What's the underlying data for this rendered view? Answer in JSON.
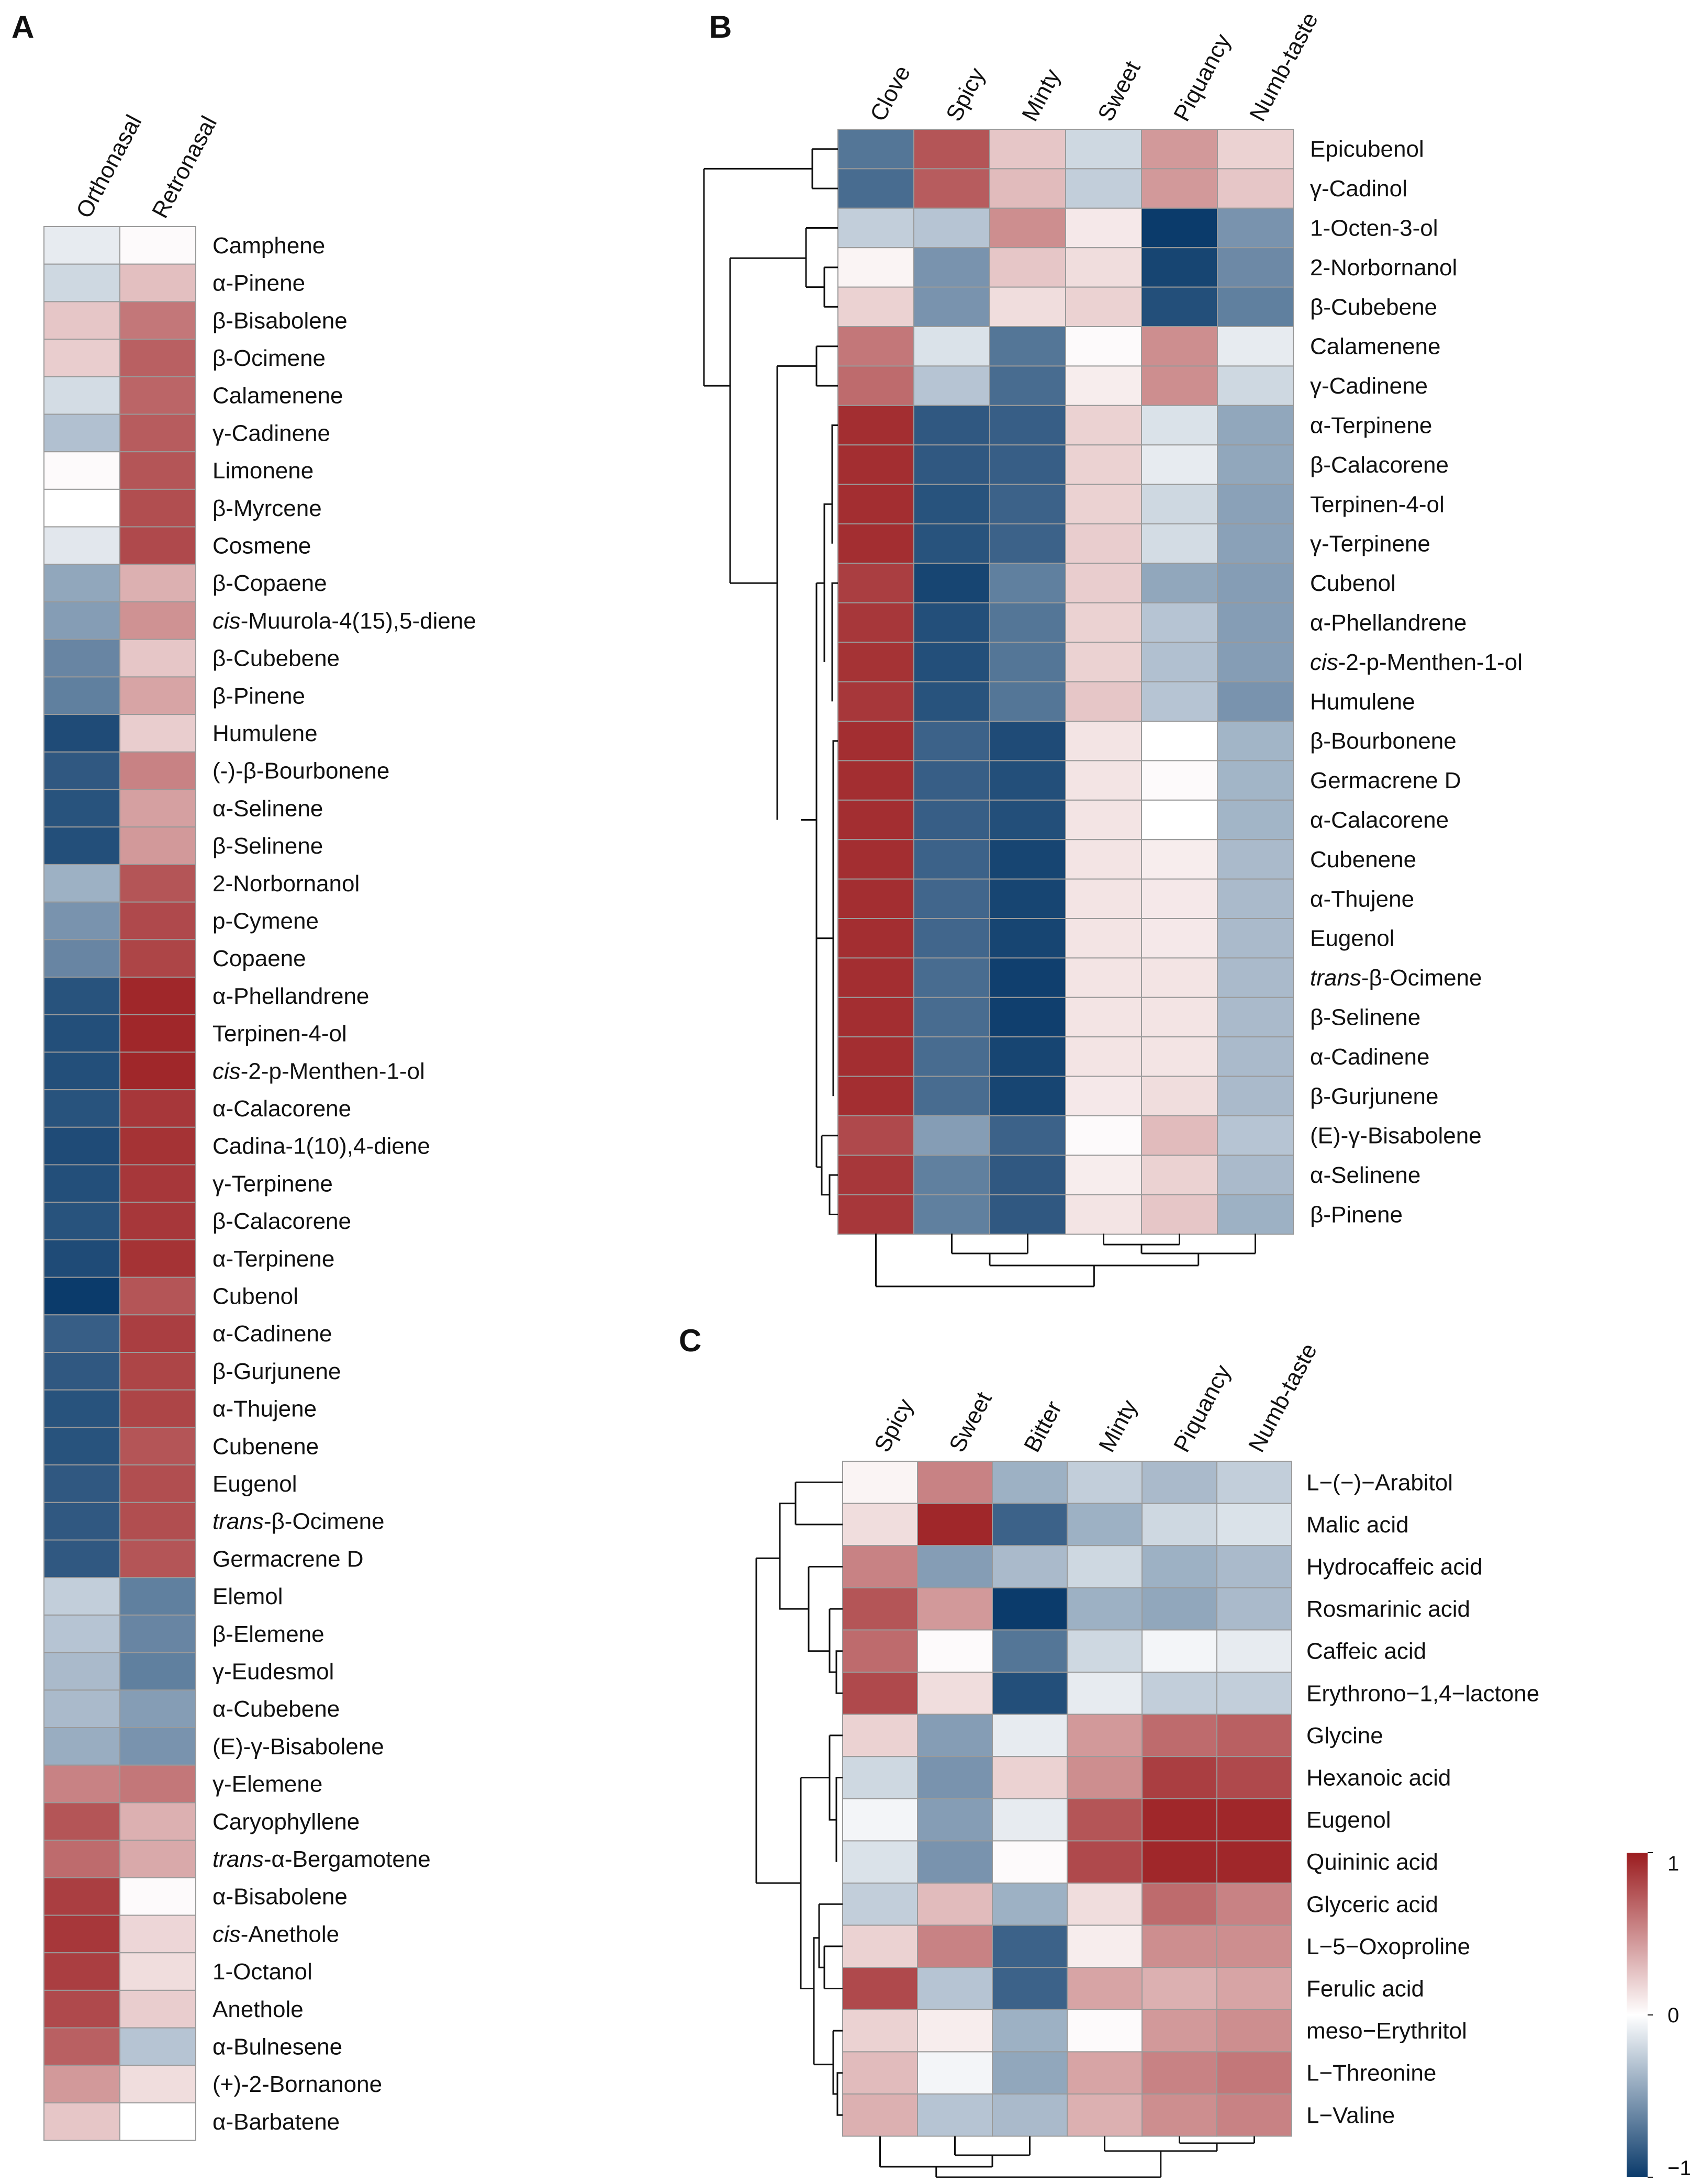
{
  "chart_data": [
    {
      "panel": "A",
      "type": "heatmap",
      "columns": [
        "Orthonasal",
        "Retronasal"
      ],
      "rows": [
        {
          "label": "Camphene",
          "values": [
            -0.1,
            0.02
          ]
        },
        {
          "label": "α-Pinene",
          "values": [
            -0.2,
            0.28
          ]
        },
        {
          "label": "β-Bisabolene",
          "values": [
            0.25,
            0.6
          ]
        },
        {
          "label": "β-Ocimene",
          "values": [
            0.22,
            0.7
          ]
        },
        {
          "label": "Calamenene",
          "values": [
            -0.18,
            0.68
          ]
        },
        {
          "label": "γ-Cadinene",
          "values": [
            -0.32,
            0.72
          ]
        },
        {
          "label": "Limonene",
          "values": [
            0.02,
            0.75
          ]
        },
        {
          "label": "β-Myrcene",
          "values": [
            0.0,
            0.78
          ]
        },
        {
          "label": "Cosmene",
          "values": [
            -0.12,
            0.8
          ]
        },
        {
          "label": "β-Copaene",
          "values": [
            -0.45,
            0.35
          ]
        },
        {
          "label": "cis-Muurola-4(15),5-diene",
          "values": [
            -0.5,
            0.48
          ]
        },
        {
          "label": "β-Cubebene",
          "values": [
            -0.62,
            0.25
          ]
        },
        {
          "label": "β-Pinene",
          "values": [
            -0.65,
            0.4
          ]
        },
        {
          "label": "Humulene",
          "values": [
            -0.92,
            0.22
          ]
        },
        {
          "label": "(-)-β-Bourbonene",
          "values": [
            -0.85,
            0.55
          ]
        },
        {
          "label": "α-Selinene",
          "values": [
            -0.88,
            0.42
          ]
        },
        {
          "label": "β-Selinene",
          "values": [
            -0.9,
            0.45
          ]
        },
        {
          "label": "2-Norbornanol",
          "values": [
            -0.4,
            0.75
          ]
        },
        {
          "label": "p-Cymene",
          "values": [
            -0.55,
            0.8
          ]
        },
        {
          "label": "Copaene",
          "values": [
            -0.62,
            0.82
          ]
        },
        {
          "label": "α-Phellandrene",
          "values": [
            -0.88,
            0.95
          ]
        },
        {
          "label": "Terpinen-4-ol",
          "values": [
            -0.9,
            0.95
          ]
        },
        {
          "label": "cis-2-p-Menthen-1-ol",
          "values": [
            -0.9,
            0.95
          ]
        },
        {
          "label": "α-Calacorene",
          "values": [
            -0.88,
            0.88
          ]
        },
        {
          "label": "Cadina-1(10),4-diene",
          "values": [
            -0.92,
            0.9
          ]
        },
        {
          "label": "γ-Terpinene",
          "values": [
            -0.9,
            0.88
          ]
        },
        {
          "label": "β-Calacorene",
          "values": [
            -0.88,
            0.88
          ]
        },
        {
          "label": "α-Terpinene",
          "values": [
            -0.92,
            0.9
          ]
        },
        {
          "label": "Cubenol",
          "values": [
            -1.0,
            0.75
          ]
        },
        {
          "label": "α-Cadinene",
          "values": [
            -0.82,
            0.85
          ]
        },
        {
          "label": "β-Gurjunene",
          "values": [
            -0.85,
            0.82
          ]
        },
        {
          "label": "α-Thujene",
          "values": [
            -0.88,
            0.82
          ]
        },
        {
          "label": "Cubenene",
          "values": [
            -0.88,
            0.75
          ]
        },
        {
          "label": "Eugenol",
          "values": [
            -0.85,
            0.78
          ]
        },
        {
          "label": "trans-β-Ocimene",
          "values": [
            -0.85,
            0.78
          ]
        },
        {
          "label": "Germacrene D",
          "values": [
            -0.85,
            0.75
          ]
        },
        {
          "label": "Elemol",
          "values": [
            -0.25,
            -0.65
          ]
        },
        {
          "label": "β-Elemene",
          "values": [
            -0.3,
            -0.62
          ]
        },
        {
          "label": "γ-Eudesmol",
          "values": [
            -0.35,
            -0.65
          ]
        },
        {
          "label": "α-Cubebene",
          "values": [
            -0.35,
            -0.5
          ]
        },
        {
          "label": "(E)-γ-Bisabolene",
          "values": [
            -0.42,
            -0.55
          ]
        },
        {
          "label": "γ-Elemene",
          "values": [
            0.55,
            0.6
          ]
        },
        {
          "label": "Caryophyllene",
          "values": [
            0.75,
            0.35
          ]
        },
        {
          "label": "trans-α-Bergamotene",
          "values": [
            0.65,
            0.38
          ]
        },
        {
          "label": "α-Bisabolene",
          "values": [
            0.85,
            0.02
          ]
        },
        {
          "label": "cis-Anethole",
          "values": [
            0.88,
            0.18
          ]
        },
        {
          "label": "1-Octanol",
          "values": [
            0.85,
            0.15
          ]
        },
        {
          "label": "Anethole",
          "values": [
            0.8,
            0.22
          ]
        },
        {
          "label": "α-Bulnesene",
          "values": [
            0.7,
            -0.3
          ]
        },
        {
          "label": "(+)-2-Bornanone",
          "values": [
            0.45,
            0.15
          ]
        },
        {
          "label": "α-Barbatene",
          "values": [
            0.25,
            0.0
          ]
        }
      ]
    },
    {
      "panel": "B",
      "type": "heatmap",
      "columns": [
        "Clove",
        "Spicy",
        "Minty",
        "Sweet",
        "Piquancy",
        "Numb-taste"
      ],
      "rows": [
        {
          "label": "Epicubenol",
          "values": [
            -0.7,
            0.75,
            0.25,
            -0.2,
            0.45,
            0.2
          ]
        },
        {
          "label": "γ-Cadinol",
          "values": [
            -0.75,
            0.72,
            0.3,
            -0.25,
            0.45,
            0.25
          ]
        },
        {
          "label": "1-Octen-3-ol",
          "values": [
            -0.25,
            -0.3,
            0.5,
            0.1,
            -1.0,
            -0.55
          ]
        },
        {
          "label": "2-Norbornanol",
          "values": [
            0.05,
            -0.55,
            0.25,
            0.15,
            -0.95,
            -0.6
          ]
        },
        {
          "label": "β-Cubebene",
          "values": [
            0.2,
            -0.55,
            0.15,
            0.2,
            -0.9,
            -0.65
          ]
        },
        {
          "label": "Calamenene",
          "values": [
            0.6,
            -0.15,
            -0.7,
            0.02,
            0.5,
            -0.1
          ]
        },
        {
          "label": "γ-Cadinene",
          "values": [
            0.65,
            -0.3,
            -0.75,
            0.08,
            0.5,
            -0.2
          ]
        },
        {
          "label": "α-Terpinene",
          "values": [
            0.92,
            -0.85,
            -0.82,
            0.2,
            -0.15,
            -0.45
          ]
        },
        {
          "label": "β-Calacorene",
          "values": [
            0.92,
            -0.85,
            -0.82,
            0.2,
            -0.1,
            -0.45
          ]
        },
        {
          "label": "Terpinen-4-ol",
          "values": [
            0.92,
            -0.88,
            -0.8,
            0.2,
            -0.2,
            -0.48
          ]
        },
        {
          "label": "γ-Terpinene",
          "values": [
            0.92,
            -0.88,
            -0.8,
            0.22,
            -0.18,
            -0.48
          ]
        },
        {
          "label": "Cubenol",
          "values": [
            0.85,
            -0.95,
            -0.65,
            0.22,
            -0.45,
            -0.5
          ]
        },
        {
          "label": "α-Phellandrene",
          "values": [
            0.88,
            -0.9,
            -0.7,
            0.2,
            -0.3,
            -0.5
          ]
        },
        {
          "label": "cis-2-p-Menthen-1-ol",
          "values": [
            0.9,
            -0.9,
            -0.7,
            0.2,
            -0.32,
            -0.5
          ]
        },
        {
          "label": "Humulene",
          "values": [
            0.88,
            -0.88,
            -0.7,
            0.25,
            -0.3,
            -0.55
          ]
        },
        {
          "label": "β-Bourbonene",
          "values": [
            0.92,
            -0.8,
            -0.92,
            0.12,
            0.0,
            -0.38
          ]
        },
        {
          "label": "Germacrene D",
          "values": [
            0.92,
            -0.82,
            -0.9,
            0.12,
            0.02,
            -0.38
          ]
        },
        {
          "label": "α-Calacorene",
          "values": [
            0.92,
            -0.82,
            -0.9,
            0.12,
            0.0,
            -0.38
          ]
        },
        {
          "label": "Cubenene",
          "values": [
            0.92,
            -0.8,
            -0.95,
            0.12,
            0.08,
            -0.35
          ]
        },
        {
          "label": "α-Thujene",
          "values": [
            0.92,
            -0.78,
            -0.95,
            0.12,
            0.1,
            -0.35
          ]
        },
        {
          "label": "Eugenol",
          "values": [
            0.92,
            -0.78,
            -0.95,
            0.12,
            0.1,
            -0.35
          ]
        },
        {
          "label": "trans-β-Ocimene",
          "values": [
            0.92,
            -0.75,
            -0.98,
            0.12,
            0.12,
            -0.35
          ]
        },
        {
          "label": "β-Selinene",
          "values": [
            0.92,
            -0.75,
            -0.98,
            0.12,
            0.12,
            -0.35
          ]
        },
        {
          "label": "α-Cadinene",
          "values": [
            0.92,
            -0.75,
            -0.95,
            0.12,
            0.12,
            -0.35
          ]
        },
        {
          "label": "β-Gurjunene",
          "values": [
            0.92,
            -0.75,
            -0.95,
            0.1,
            0.15,
            -0.35
          ]
        },
        {
          "label": "(E)-γ-Bisabolene",
          "values": [
            0.8,
            -0.5,
            -0.8,
            0.02,
            0.3,
            -0.3
          ]
        },
        {
          "label": "α-Selinene",
          "values": [
            0.88,
            -0.65,
            -0.85,
            0.08,
            0.2,
            -0.35
          ]
        },
        {
          "label": "β-Pinene",
          "values": [
            0.88,
            -0.65,
            -0.85,
            0.12,
            0.25,
            -0.4
          ]
        }
      ]
    },
    {
      "panel": "C",
      "type": "heatmap",
      "columns": [
        "Spicy",
        "Sweet",
        "Bitter",
        "Minty",
        "Piquancy",
        "Numb-taste"
      ],
      "rows": [
        {
          "label": "L−(−)−Arabitol",
          "values": [
            0.05,
            0.55,
            -0.4,
            -0.25,
            -0.35,
            -0.25
          ]
        },
        {
          "label": "Malic acid",
          "values": [
            0.15,
            0.95,
            -0.8,
            -0.4,
            -0.2,
            -0.15
          ]
        },
        {
          "label": "Hydrocaffeic acid",
          "values": [
            0.55,
            -0.5,
            -0.35,
            -0.2,
            -0.4,
            -0.35
          ]
        },
        {
          "label": "Rosmarinic acid",
          "values": [
            0.75,
            0.45,
            -1.0,
            -0.4,
            -0.45,
            -0.35
          ]
        },
        {
          "label": "Caffeic acid",
          "values": [
            0.65,
            0.02,
            -0.7,
            -0.2,
            -0.05,
            -0.1
          ]
        },
        {
          "label": "Erythrono−1,4−lactone",
          "values": [
            0.8,
            0.15,
            -0.9,
            -0.1,
            -0.25,
            -0.25
          ]
        },
        {
          "label": "Glycine",
          "values": [
            0.2,
            -0.5,
            -0.1,
            0.45,
            0.65,
            0.7
          ]
        },
        {
          "label": "Hexanoic acid",
          "values": [
            -0.2,
            -0.55,
            0.2,
            0.5,
            0.85,
            0.8
          ]
        },
        {
          "label": "Eugenol",
          "values": [
            -0.05,
            -0.5,
            -0.1,
            0.75,
            0.95,
            0.95
          ]
        },
        {
          "label": "Quininic acid",
          "values": [
            -0.15,
            -0.55,
            0.02,
            0.8,
            0.95,
            0.95
          ]
        },
        {
          "label": "Glyceric acid",
          "values": [
            -0.25,
            0.3,
            -0.4,
            0.15,
            0.65,
            0.55
          ]
        },
        {
          "label": "L−5−Oxoproline",
          "values": [
            0.2,
            0.55,
            -0.8,
            0.08,
            0.5,
            0.5
          ]
        },
        {
          "label": "Ferulic acid",
          "values": [
            0.8,
            -0.3,
            -0.8,
            0.4,
            0.35,
            0.4
          ]
        },
        {
          "label": "meso−Erythritol",
          "values": [
            0.2,
            0.08,
            -0.4,
            0.02,
            0.45,
            0.5
          ]
        },
        {
          "label": "L−Threonine",
          "values": [
            0.3,
            -0.05,
            -0.45,
            0.4,
            0.55,
            0.6
          ]
        },
        {
          "label": "L−Valine",
          "values": [
            0.35,
            -0.3,
            -0.35,
            0.35,
            0.5,
            0.55
          ]
        }
      ]
    }
  ],
  "colorbar": {
    "ticks": [
      "1",
      "0",
      "−1"
    ],
    "tick_values": [
      1,
      0,
      -1
    ],
    "colors": {
      "high": "#9b1c1f",
      "mid": "#ffffff",
      "low": "#0b3b6b"
    }
  }
}
